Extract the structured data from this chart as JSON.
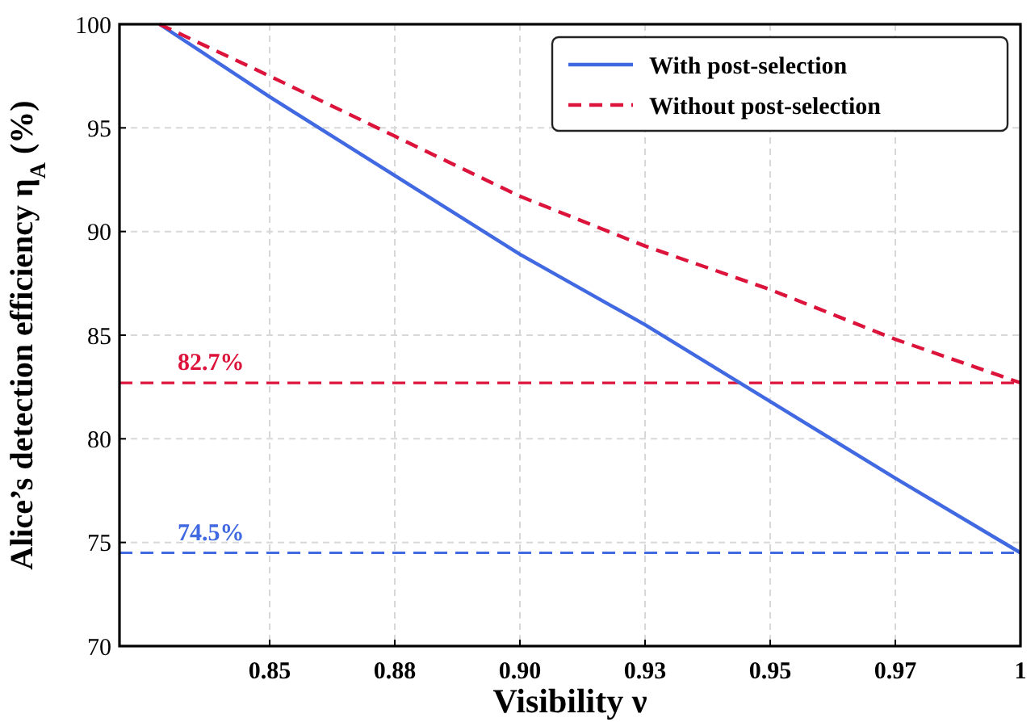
{
  "chart_data": {
    "type": "line",
    "xlabel": "Visibility ν",
    "ylabel": "Alice’s detection efficiency η$_{A}$ (%)",
    "x": [
      0.828,
      0.85,
      0.875,
      0.9,
      0.925,
      0.95,
      0.975,
      1.0
    ],
    "series": [
      {
        "name": "With post-selection",
        "color": "#4169e1",
        "line_style": "solid",
        "values": [
          100,
          96.5,
          92.7,
          88.9,
          85.5,
          81.8,
          78.1,
          74.5
        ]
      },
      {
        "name": "Without post-selection",
        "color": "#dc143c",
        "line_style": "dashed",
        "values": [
          100,
          97.5,
          94.6,
          91.7,
          89.3,
          87.2,
          84.8,
          82.7
        ]
      }
    ],
    "xlim": [
      0.82,
      1.0
    ],
    "xticks": [
      {
        "value": 0.85,
        "label": "0.85"
      },
      {
        "value": 0.875,
        "label": "0.88"
      },
      {
        "value": 0.9,
        "label": "0.90"
      },
      {
        "value": 0.925,
        "label": "0.93"
      },
      {
        "value": 0.95,
        "label": "0.95"
      },
      {
        "value": 0.975,
        "label": "0.97"
      },
      {
        "value": 1.0,
        "label": "1"
      }
    ],
    "ylim": [
      70,
      100
    ],
    "yticks": [
      70,
      75,
      80,
      85,
      90,
      95,
      100
    ],
    "ref_lines": [
      {
        "axis": "y",
        "value": 82.7,
        "label": "82.7%",
        "color": "#dc143c",
        "line_style": "dashed"
      },
      {
        "axis": "y",
        "value": 74.5,
        "label": "74.5%",
        "color": "#4169e1",
        "line_style": "dashed"
      }
    ],
    "grid": true,
    "legend": "top right"
  }
}
